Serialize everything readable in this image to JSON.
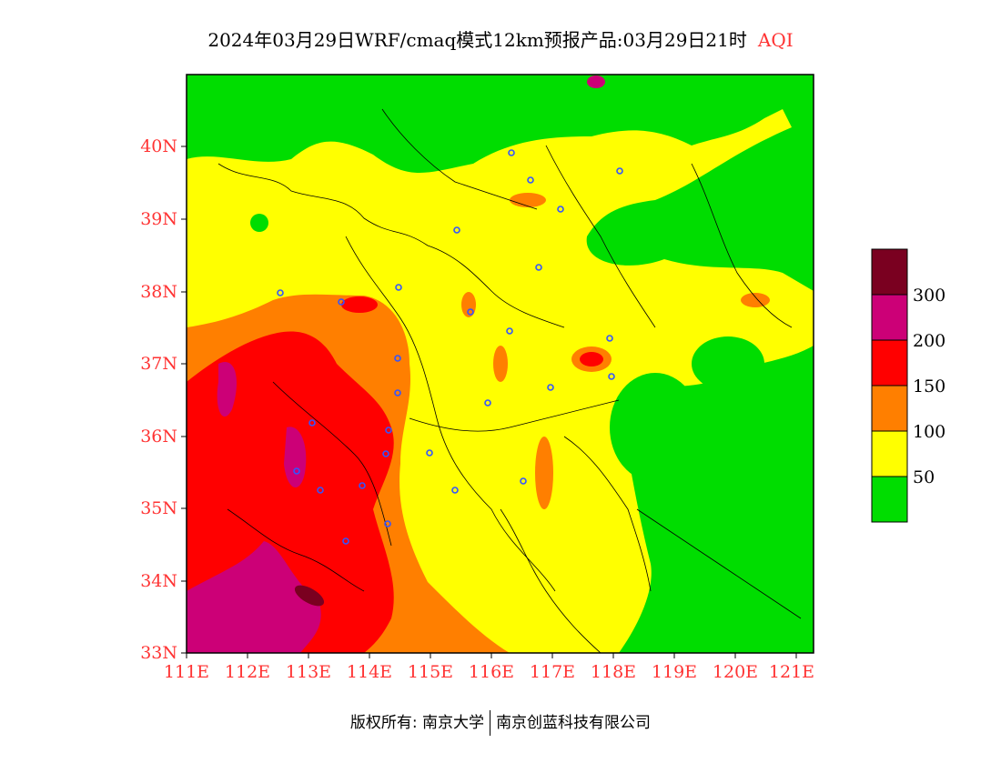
{
  "title": {
    "main": "2024年03月29日WRF/cmaq模式12km预报产品:03月29日21时",
    "variable": "AQI"
  },
  "axes": {
    "lat_labels": [
      "40N",
      "39N",
      "38N",
      "37N",
      "36N",
      "35N",
      "34N",
      "33N"
    ],
    "lon_labels": [
      "111E",
      "112E",
      "113E",
      "114E",
      "115E",
      "116E",
      "117E",
      "118E",
      "119E",
      "120E",
      "121E"
    ],
    "lat_range": [
      33,
      41
    ],
    "lon_range": [
      111,
      121.3
    ]
  },
  "legend": {
    "labels": [
      "300",
      "200",
      "150",
      "100",
      "50"
    ],
    "colors": {
      "good": "#00dd00",
      "moderate": "#ffff00",
      "usg": "#ff7f00",
      "unhealthy": "#ff0000",
      "very_unhealthy": "#cc0077",
      "hazardous": "#7a0020"
    }
  },
  "footer": {
    "copyright": "版权所有: 南京大学",
    "company": "南京创蓝科技有限公司"
  },
  "stations": {
    "marker_color": "#3355ff"
  }
}
